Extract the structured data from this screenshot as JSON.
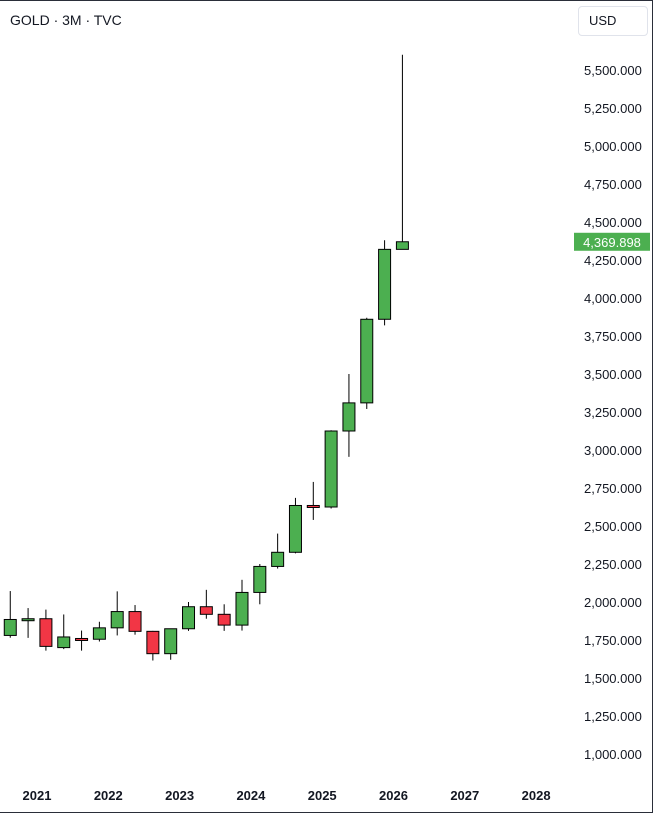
{
  "header": {
    "symbol_title": "GOLD · 3M · TVC",
    "currency": "USD"
  },
  "colors": {
    "up": "#4caf50",
    "down": "#f23645",
    "candle_border": "#000000",
    "wick": "#000000",
    "price_label_bg": "#4caf50"
  },
  "chart_data": {
    "type": "candlestick",
    "title": "GOLD · 3M · TVC",
    "ylim": [
      850,
      5700
    ],
    "y_ticks": [
      "1,000.000",
      "1,250.000",
      "1,500.000",
      "1,750.000",
      "2,000.000",
      "2,250.000",
      "2,500.000",
      "2,750.000",
      "3,000.000",
      "3,250.000",
      "3,500.000",
      "3,750.000",
      "4,000.000",
      "4,250.000",
      "4,500.000",
      "4,750.000",
      "5,000.000",
      "5,250.000",
      "5,500.000"
    ],
    "y_tick_values": [
      1000,
      1250,
      1500,
      1750,
      2000,
      2250,
      2500,
      2750,
      3000,
      3250,
      3500,
      3750,
      4000,
      4250,
      4500,
      4750,
      5000,
      5250,
      5500
    ],
    "x_ticks": [
      "2021",
      "2022",
      "2023",
      "2024",
      "2025",
      "2026",
      "2027",
      "2028"
    ],
    "x_tick_values": [
      2021,
      2022,
      2023,
      2024,
      2025,
      2026,
      2027,
      2028
    ],
    "xlim": [
      2020.5,
      2028.55
    ],
    "last_price_label": "4,369.898",
    "last_price": 4369.898,
    "candles": [
      {
        "t": "2020-Q4",
        "x": 2020.625,
        "open": 1780,
        "high": 2072,
        "low": 1765,
        "close": 1885
      },
      {
        "t": "2021-Q1",
        "x": 2020.875,
        "open": 1878,
        "high": 1960,
        "low": 1764,
        "close": 1890
      },
      {
        "t": "2021-Q2",
        "x": 2021.125,
        "open": 1890,
        "high": 1950,
        "low": 1680,
        "close": 1708
      },
      {
        "t": "2021-Q3",
        "x": 2021.375,
        "open": 1700,
        "high": 1918,
        "low": 1690,
        "close": 1770
      },
      {
        "t": "2021-Q4",
        "x": 2021.625,
        "open": 1760,
        "high": 1812,
        "low": 1680,
        "close": 1755
      },
      {
        "t": "2022-Q1",
        "x": 2021.875,
        "open": 1755,
        "high": 1870,
        "low": 1740,
        "close": 1830
      },
      {
        "t": "2022-Q2",
        "x": 2022.125,
        "open": 1830,
        "high": 2070,
        "low": 1780,
        "close": 1937
      },
      {
        "t": "2022-Q3",
        "x": 2022.375,
        "open": 1937,
        "high": 1980,
        "low": 1785,
        "close": 1807
      },
      {
        "t": "2022-Q4",
        "x": 2022.625,
        "open": 1807,
        "high": 1810,
        "low": 1615,
        "close": 1660
      },
      {
        "t": "2023-Q1",
        "x": 2022.875,
        "open": 1660,
        "high": 1822,
        "low": 1620,
        "close": 1824
      },
      {
        "t": "2023-Q2",
        "x": 2023.125,
        "open": 1824,
        "high": 2000,
        "low": 1810,
        "close": 1969
      },
      {
        "t": "2023-Q3",
        "x": 2023.375,
        "open": 1969,
        "high": 2080,
        "low": 1890,
        "close": 1919
      },
      {
        "t": "2023-Q4",
        "x": 2023.625,
        "open": 1919,
        "high": 1985,
        "low": 1810,
        "close": 1848
      },
      {
        "t": "2024-Q1",
        "x": 2023.875,
        "open": 1848,
        "high": 2146,
        "low": 1812,
        "close": 2063
      },
      {
        "t": "2024-Q2",
        "x": 2024.125,
        "open": 2063,
        "high": 2250,
        "low": 1985,
        "close": 2234
      },
      {
        "t": "2024-Q3",
        "x": 2024.375,
        "open": 2234,
        "high": 2450,
        "low": 2220,
        "close": 2327
      },
      {
        "t": "2024-Q4",
        "x": 2024.625,
        "open": 2327,
        "high": 2685,
        "low": 2320,
        "close": 2635
      },
      {
        "t": "2025-Q1",
        "x": 2024.875,
        "open": 2635,
        "high": 2790,
        "low": 2540,
        "close": 2625
      },
      {
        "t": "2025-Q2",
        "x": 2025.125,
        "open": 2625,
        "high": 3130,
        "low": 2615,
        "close": 3125
      },
      {
        "t": "2025-Q3",
        "x": 2025.375,
        "open": 3125,
        "high": 3500,
        "low": 2955,
        "close": 3310
      },
      {
        "t": "2025-Q4",
        "x": 2025.625,
        "open": 3310,
        "high": 3870,
        "low": 3270,
        "close": 3860
      },
      {
        "t": "2026-Q1",
        "x": 2025.875,
        "open": 3860,
        "high": 4380,
        "low": 3820,
        "close": 4320
      },
      {
        "t": "2026-Q2",
        "x": 2026.125,
        "open": 4320,
        "high": 5600,
        "low": 4320,
        "close": 4370
      }
    ]
  }
}
